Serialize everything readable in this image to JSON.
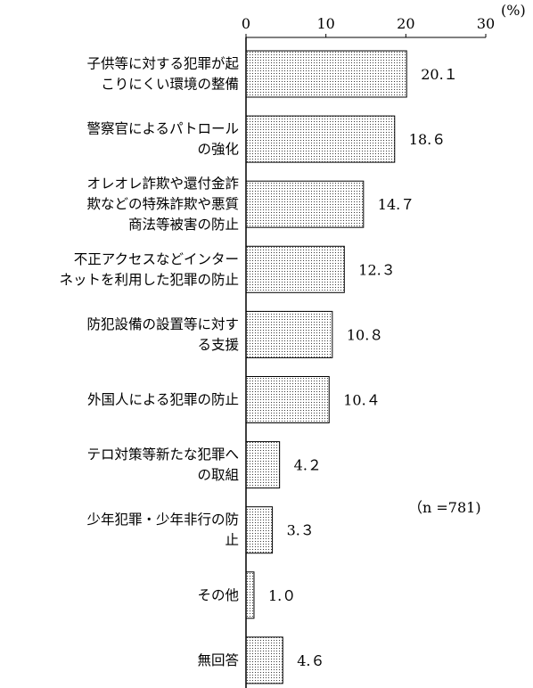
{
  "chart_data": {
    "type": "bar",
    "orientation": "horizontal",
    "categories": [
      [
        "子供等に対する犯罪が起",
        "こりにくい環境の整備"
      ],
      [
        "警察官によるパトロール",
        "の強化"
      ],
      [
        "オレオレ詐欺や還付金詐",
        "欺などの特殊詐欺や悪質",
        "商法等被害の防止"
      ],
      [
        "不正アクセスなどインター",
        "ネットを利用した犯罪の防止"
      ],
      [
        "防犯設備の設置等に対す",
        "る支援"
      ],
      [
        "外国人による犯罪の防止"
      ],
      [
        "テロ対策等新たな犯罪へ",
        "の取組"
      ],
      [
        "少年犯罪・少年非行の防",
        "止"
      ],
      [
        "その他"
      ],
      [
        "無回答"
      ]
    ],
    "values": [
      20.1,
      18.6,
      14.7,
      12.3,
      10.8,
      10.4,
      4.2,
      3.3,
      1.0,
      4.6
    ],
    "value_labels": [
      "20.１",
      "18.６",
      "14.７",
      "12.３",
      "10.８",
      "10.４",
      "4.２",
      "3.３",
      "1.０",
      "4.６"
    ],
    "xlim": [
      0,
      30
    ],
    "xticks": [
      0,
      10,
      20,
      30
    ],
    "unit": "(%)",
    "note": "（n =781)",
    "bar_pattern": "dotted",
    "grid": false
  }
}
